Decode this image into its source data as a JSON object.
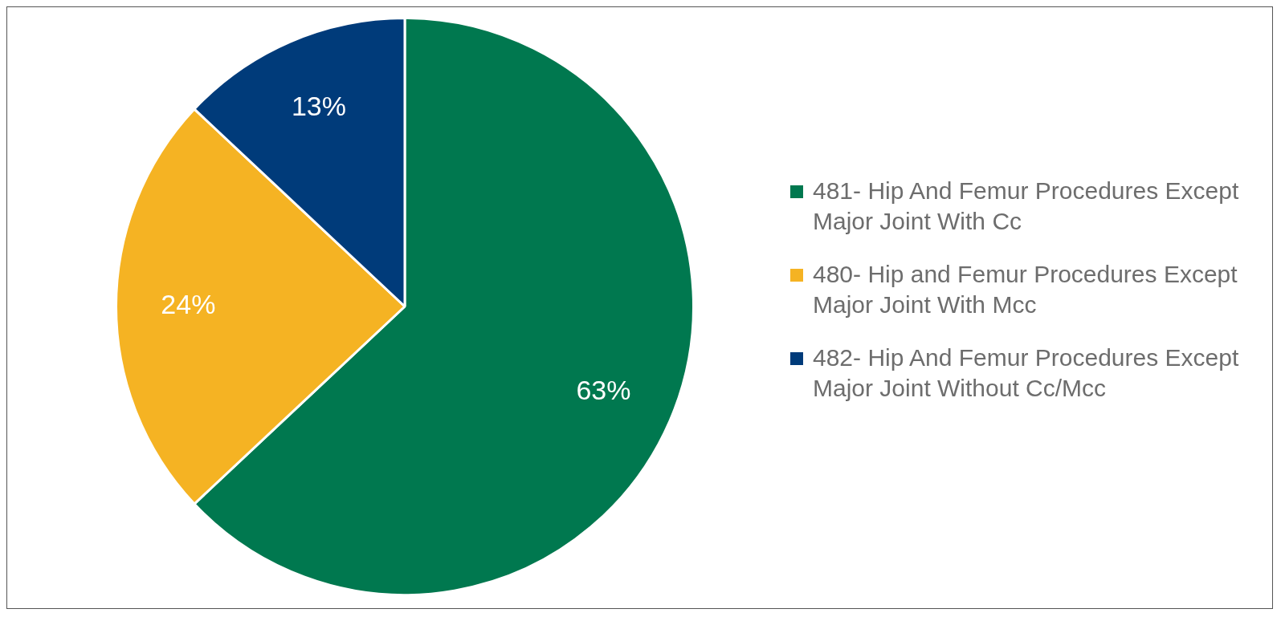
{
  "chart_data": {
    "type": "pie",
    "categories": [
      "481- Hip And Femur Procedures Except Major Joint With Cc",
      "480- Hip and Femur Procedures Except Major Joint With Mcc",
      "482- Hip And Femur Procedures Except Major Joint Without Cc/Mcc"
    ],
    "values": [
      63,
      24,
      13
    ],
    "colors": [
      "#00784f",
      "#f5b323",
      "#003b7a"
    ],
    "value_labels": [
      "63%",
      "24%",
      "13%"
    ],
    "legend": "right"
  }
}
